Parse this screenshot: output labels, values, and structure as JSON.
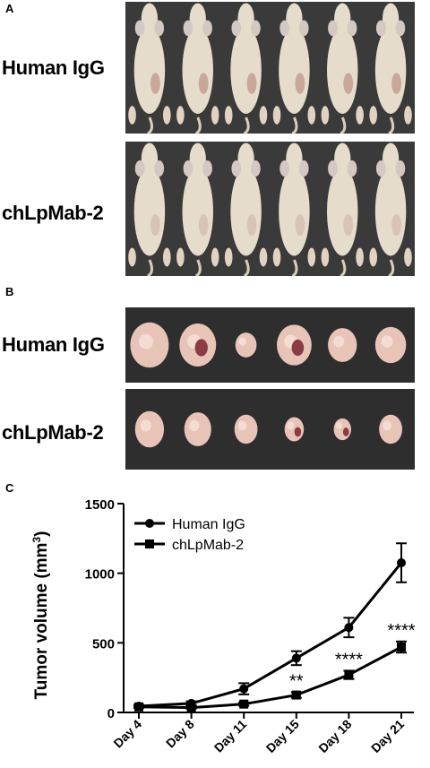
{
  "panels": {
    "a": {
      "letter": "A",
      "rows": [
        {
          "label": "Human IgG",
          "subject_count": 6
        },
        {
          "label": "chLpMab-2",
          "subject_count": 6
        }
      ]
    },
    "b": {
      "letter": "B",
      "rows": [
        {
          "label": "Human IgG",
          "subject_count": 6
        },
        {
          "label": "chLpMab-2",
          "subject_count": 6
        }
      ]
    },
    "c": {
      "letter": "C"
    }
  },
  "colors": {
    "photo_background": "#3a3a3a",
    "mouse_skin": "#e6dccb",
    "tumor_tissue": "#e8c4b8",
    "line": "#000000"
  },
  "chart_data": {
    "type": "line",
    "categories": [
      "Day 4",
      "Day 8",
      "Day 11",
      "Day 15",
      "Day 18",
      "Day 21"
    ],
    "ylabel_main": "Tumor volume (mm",
    "ylabel_sup": "3",
    "ylabel_close": ")",
    "xlabel": "",
    "ylim": [
      0,
      1500
    ],
    "yticks": [
      0,
      500,
      1000,
      1500
    ],
    "grid": false,
    "legend_position": "top-left",
    "series": [
      {
        "name": "Human IgG",
        "marker": "circle",
        "values": [
          45,
          65,
          170,
          390,
          610,
          1075
        ],
        "errors": [
          10,
          15,
          40,
          50,
          70,
          140
        ]
      },
      {
        "name": "chLpMab-2",
        "marker": "square",
        "values": [
          40,
          35,
          60,
          125,
          270,
          470
        ],
        "errors": [
          8,
          8,
          12,
          20,
          30,
          40
        ]
      }
    ],
    "annotations": [
      {
        "category": "Day 15",
        "text": "**"
      },
      {
        "category": "Day 18",
        "text": "****"
      },
      {
        "category": "Day 21",
        "text": "****"
      }
    ]
  }
}
